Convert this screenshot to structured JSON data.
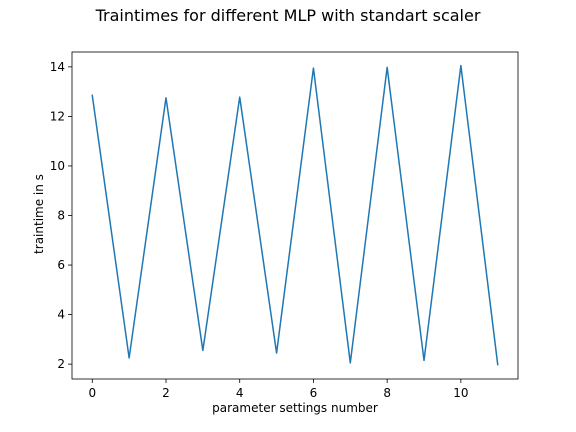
{
  "chart_data": {
    "type": "line",
    "title": "Traintimes for different MLP with standart scaler",
    "xlabel": "parameter settings number",
    "ylabel": "traintime in s",
    "x": [
      0,
      1,
      2,
      3,
      4,
      5,
      6,
      7,
      8,
      9,
      10,
      11
    ],
    "series": [
      {
        "values": [
          12.85,
          2.25,
          12.75,
          2.55,
          12.78,
          2.45,
          13.95,
          2.05,
          13.98,
          2.15,
          14.05,
          1.98
        ],
        "color": "#1f77b4"
      }
    ],
    "xlim": [
      -0.55,
      11.55
    ],
    "ylim": [
      1.4,
      14.6
    ],
    "xticks": [
      0,
      2,
      4,
      6,
      8,
      10
    ],
    "yticks": [
      2,
      4,
      6,
      8,
      10,
      12,
      14
    ],
    "grid": false,
    "legend": "none"
  }
}
